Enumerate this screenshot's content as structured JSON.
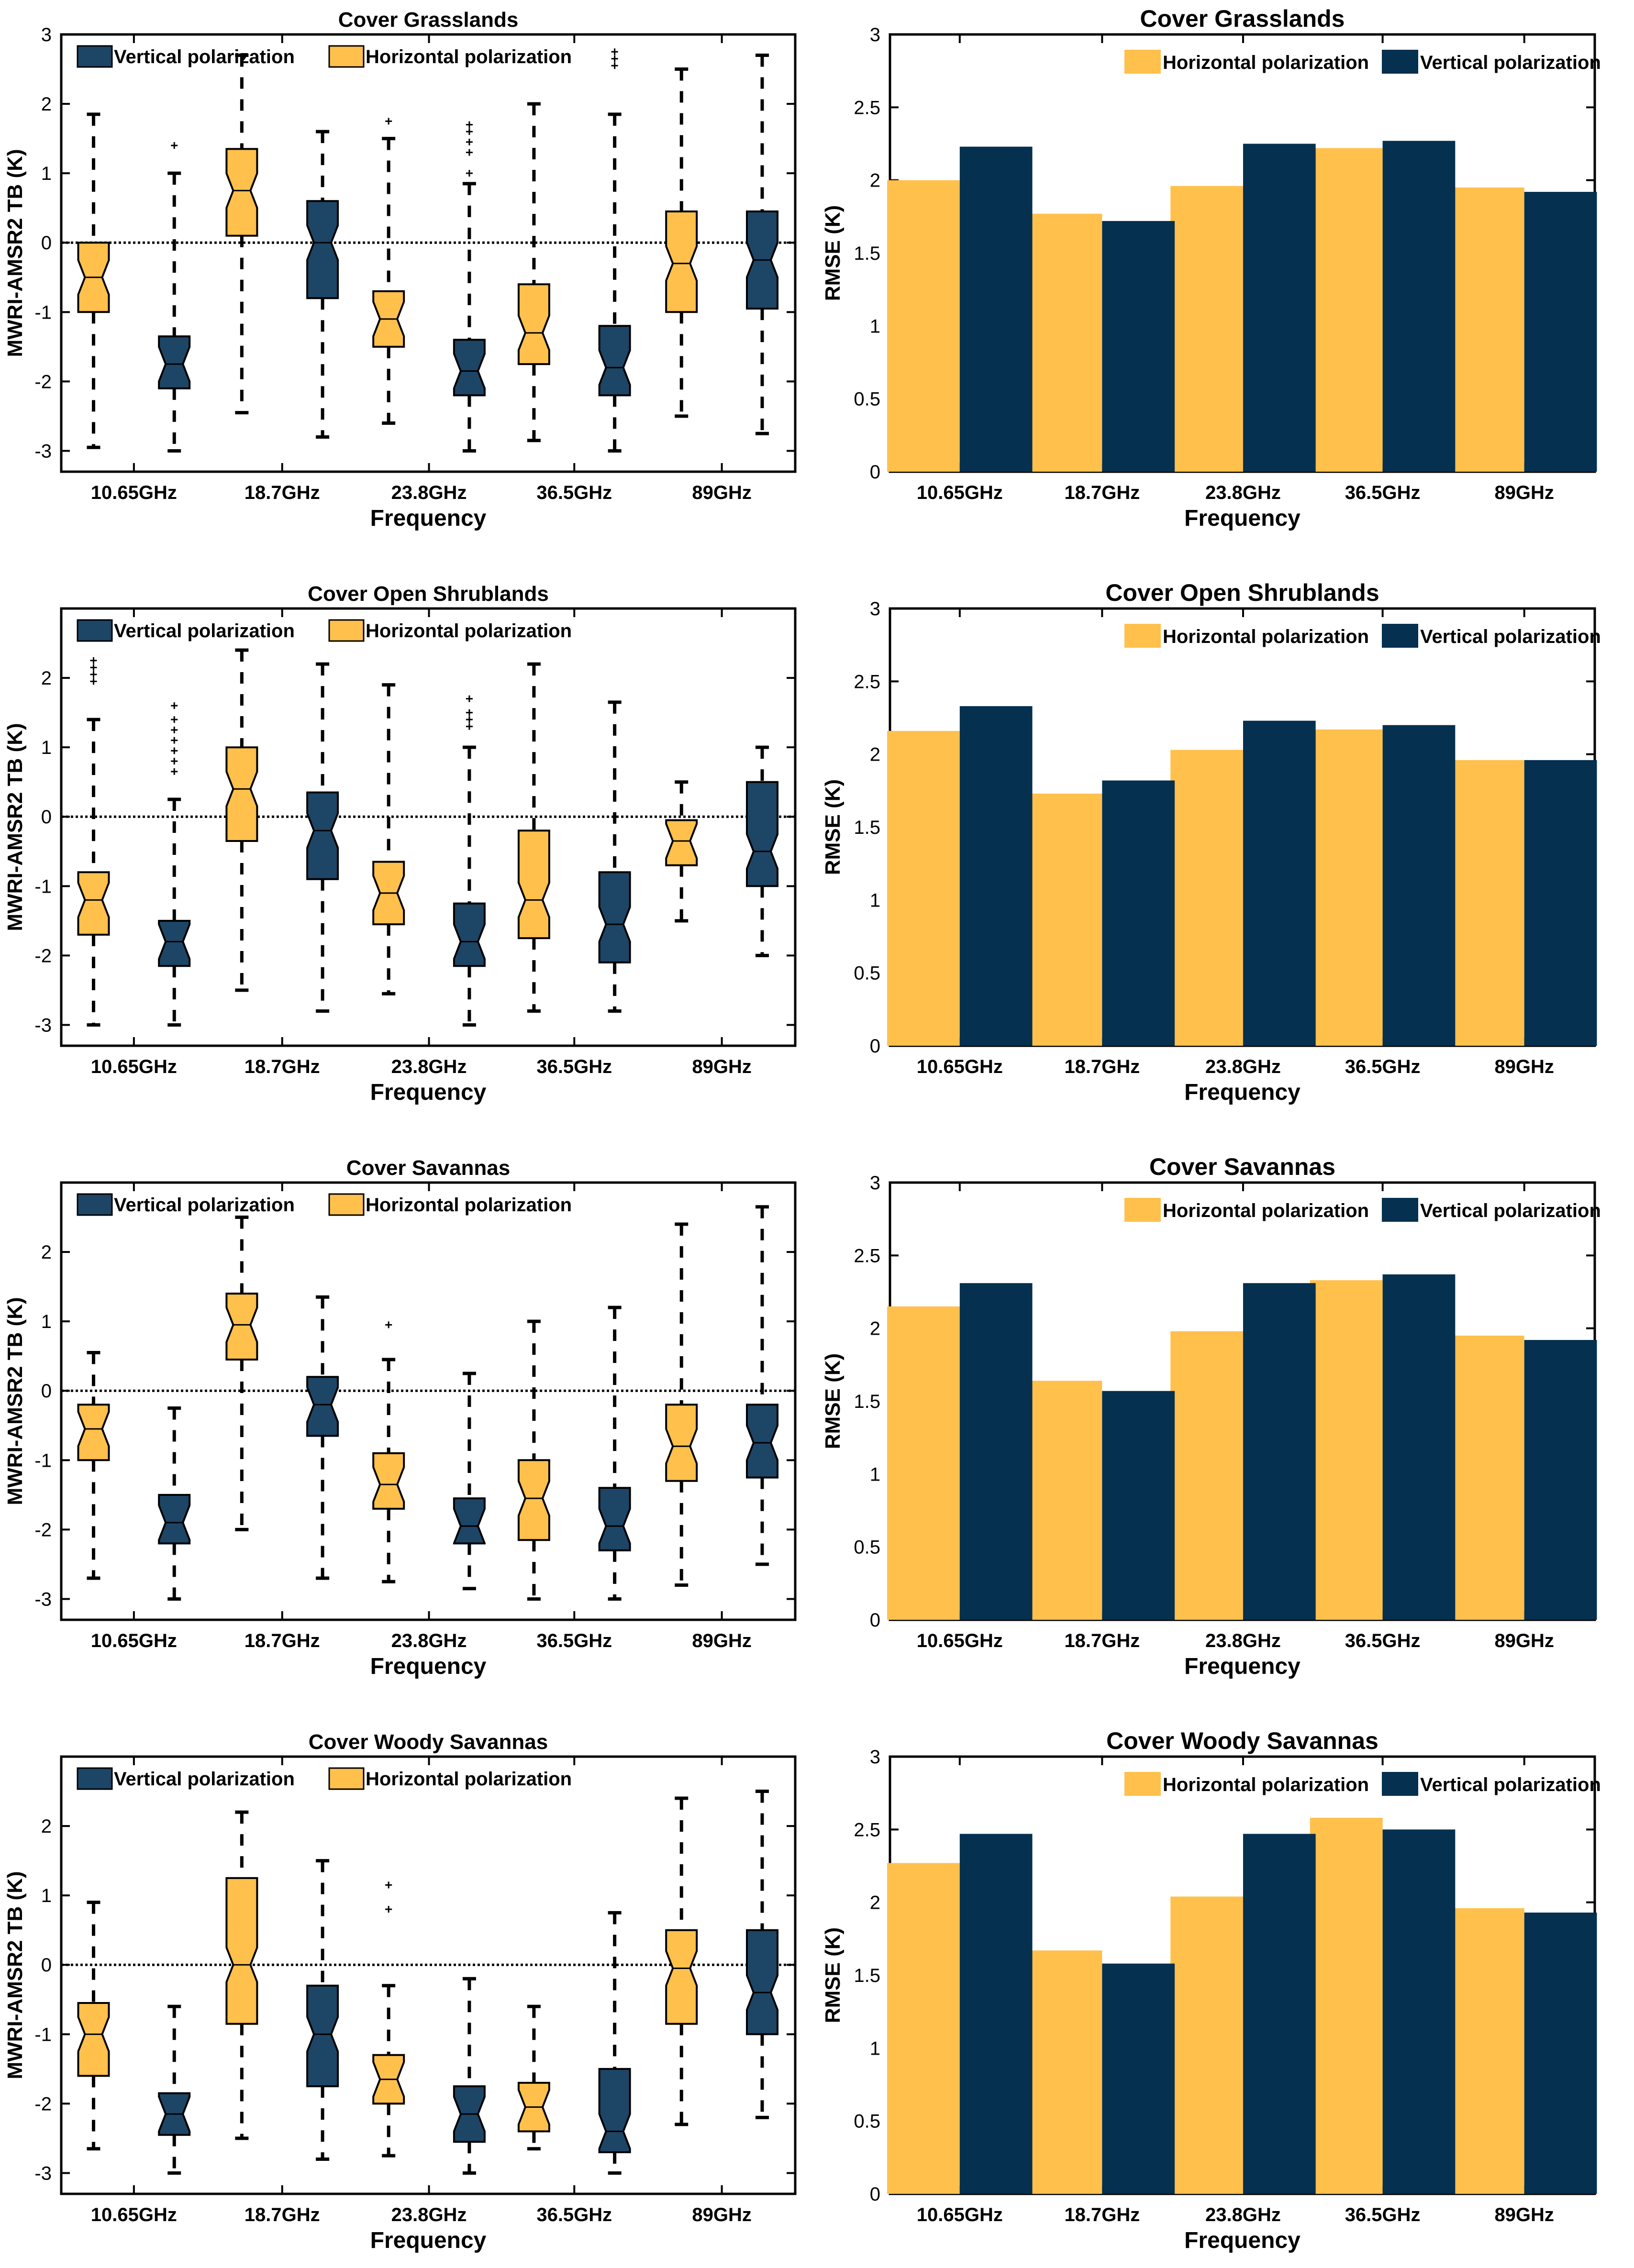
{
  "colors": {
    "horizontal": "#FFC04C",
    "vertical": "#05304F",
    "box_vertical": "#1D4566"
  },
  "legend_labels": {
    "vertical": "Vertical polarization",
    "horizontal": "Horizontal polarization"
  },
  "chart_data": [
    {
      "type": "box",
      "panel": "left",
      "row": 0,
      "title": "Cover  Grasslands",
      "xlabel": "Frequency",
      "ylabel": "MWRI-AMSR2 TB (K)",
      "ylim": [
        -3.3,
        3
      ],
      "yticks": [
        -3,
        -2,
        -1,
        0,
        1,
        2,
        3
      ],
      "categories": [
        "10.65GHz",
        "18.7GHz",
        "23.8GHz",
        "36.5GHz",
        "89GHz"
      ],
      "reference_line": 0,
      "series": [
        {
          "name": "Horizontal polarization",
          "key": "horizontal",
          "boxes": [
            {
              "whislo": -2.95,
              "q1": -1.0,
              "med": -0.5,
              "q3": 0.0,
              "whishi": 1.85,
              "fliers": []
            },
            {
              "whislo": -2.45,
              "q1": 0.1,
              "med": 0.75,
              "q3": 1.35,
              "whishi": 2.7,
              "fliers": []
            },
            {
              "whislo": -2.6,
              "q1": -1.5,
              "med": -1.1,
              "q3": -0.7,
              "whishi": 1.5,
              "fliers": [
                1.75
              ]
            },
            {
              "whislo": -2.85,
              "q1": -1.75,
              "med": -1.3,
              "q3": -0.6,
              "whishi": 2.0,
              "fliers": []
            },
            {
              "whislo": -2.5,
              "q1": -1.0,
              "med": -0.3,
              "q3": 0.45,
              "whishi": 2.5,
              "fliers": []
            }
          ]
        },
        {
          "name": "Vertical polarization",
          "key": "vertical",
          "boxes": [
            {
              "whislo": -3.0,
              "q1": -2.1,
              "med": -1.75,
              "q3": -1.35,
              "whishi": 1.0,
              "fliers": [
                1.4
              ]
            },
            {
              "whislo": -2.8,
              "q1": -0.8,
              "med": 0.0,
              "q3": 0.6,
              "whishi": 1.6,
              "fliers": []
            },
            {
              "whislo": -3.0,
              "q1": -2.2,
              "med": -1.85,
              "q3": -1.4,
              "whishi": 0.85,
              "fliers": [
                1.0,
                1.3,
                1.45,
                1.6,
                1.7
              ]
            },
            {
              "whislo": -3.0,
              "q1": -2.2,
              "med": -1.8,
              "q3": -1.2,
              "whishi": 1.85,
              "fliers": [
                2.55,
                2.65,
                2.75
              ]
            },
            {
              "whislo": -2.75,
              "q1": -0.95,
              "med": -0.25,
              "q3": 0.45,
              "whishi": 2.7,
              "fliers": []
            }
          ]
        }
      ]
    },
    {
      "type": "bar",
      "panel": "right",
      "row": 0,
      "title": "Cover  Grasslands",
      "xlabel": "Frequency",
      "ylabel": "RMSE (K)",
      "ylim": [
        0,
        3
      ],
      "yticks": [
        0,
        0.5,
        1,
        1.5,
        2,
        2.5,
        3
      ],
      "categories": [
        "10.65GHz",
        "18.7GHz",
        "23.8GHz",
        "36.5GHz",
        "89GHz"
      ],
      "series": [
        {
          "name": "Horizontal polarization",
          "key": "horizontal",
          "values": [
            2.0,
            1.77,
            1.96,
            2.22,
            1.95
          ]
        },
        {
          "name": "Vertical polarization",
          "key": "vertical",
          "values": [
            2.23,
            1.72,
            2.25,
            2.27,
            1.92
          ]
        }
      ]
    },
    {
      "type": "box",
      "panel": "left",
      "row": 1,
      "title": "Cover  Open Shrublands",
      "xlabel": "Frequency",
      "ylabel": "MWRI-AMSR2 TB (K)",
      "ylim": [
        -3.3,
        3
      ],
      "yticks": [
        -3,
        -2,
        -1,
        0,
        1,
        2
      ],
      "categories": [
        "10.65GHz",
        "18.7GHz",
        "23.8GHz",
        "36.5GHz",
        "89GHz"
      ],
      "reference_line": 0,
      "series": [
        {
          "name": "Horizontal polarization",
          "key": "horizontal",
          "boxes": [
            {
              "whislo": -3.0,
              "q1": -1.7,
              "med": -1.2,
              "q3": -0.8,
              "whishi": 1.4,
              "fliers": [
                1.95,
                2.05,
                2.15,
                2.25
              ]
            },
            {
              "whislo": -2.5,
              "q1": -0.35,
              "med": 0.4,
              "q3": 1.0,
              "whishi": 2.4,
              "fliers": []
            },
            {
              "whislo": -2.55,
              "q1": -1.55,
              "med": -1.1,
              "q3": -0.65,
              "whishi": 1.9,
              "fliers": []
            },
            {
              "whislo": -2.8,
              "q1": -1.75,
              "med": -1.2,
              "q3": -0.2,
              "whishi": 2.2,
              "fliers": []
            },
            {
              "whislo": -1.5,
              "q1": -0.7,
              "med": -0.35,
              "q3": -0.05,
              "whishi": 0.5,
              "fliers": []
            }
          ]
        },
        {
          "name": "Vertical polarization",
          "key": "vertical",
          "boxes": [
            {
              "whislo": -3.0,
              "q1": -2.15,
              "med": -1.8,
              "q3": -1.5,
              "whishi": 0.25,
              "fliers": [
                0.65,
                0.8,
                0.95,
                1.1,
                1.25,
                1.4,
                1.6
              ]
            },
            {
              "whislo": -2.8,
              "q1": -0.9,
              "med": -0.2,
              "q3": 0.35,
              "whishi": 2.2,
              "fliers": []
            },
            {
              "whislo": -3.0,
              "q1": -2.15,
              "med": -1.8,
              "q3": -1.25,
              "whishi": 1.0,
              "fliers": [
                1.3,
                1.4,
                1.5,
                1.7
              ]
            },
            {
              "whislo": -2.8,
              "q1": -2.1,
              "med": -1.55,
              "q3": -0.8,
              "whishi": 1.65,
              "fliers": []
            },
            {
              "whislo": -2.0,
              "q1": -1.0,
              "med": -0.5,
              "q3": 0.5,
              "whishi": 1.0,
              "fliers": []
            }
          ]
        }
      ]
    },
    {
      "type": "bar",
      "panel": "right",
      "row": 1,
      "title": "Cover  Open Shrublands",
      "xlabel": "Frequency",
      "ylabel": "RMSE (K)",
      "ylim": [
        0,
        3
      ],
      "yticks": [
        0,
        0.5,
        1,
        1.5,
        2,
        2.5,
        3
      ],
      "categories": [
        "10.65GHz",
        "18.7GHz",
        "23.8GHz",
        "36.5GHz",
        "89GHz"
      ],
      "series": [
        {
          "name": "Horizontal polarization",
          "key": "horizontal",
          "values": [
            2.16,
            1.73,
            2.03,
            2.17,
            1.96
          ]
        },
        {
          "name": "Vertical polarization",
          "key": "vertical",
          "values": [
            2.33,
            1.82,
            2.23,
            2.2,
            1.96
          ]
        }
      ]
    },
    {
      "type": "box",
      "panel": "left",
      "row": 2,
      "title": "Cover  Savannas",
      "xlabel": "Frequency",
      "ylabel": "MWRI-AMSR2 TB (K)",
      "ylim": [
        -3.3,
        3
      ],
      "yticks": [
        -3,
        -2,
        -1,
        0,
        1,
        2
      ],
      "categories": [
        "10.65GHz",
        "18.7GHz",
        "23.8GHz",
        "36.5GHz",
        "89GHz"
      ],
      "reference_line": 0,
      "series": [
        {
          "name": "Horizontal polarization",
          "key": "horizontal",
          "boxes": [
            {
              "whislo": -2.7,
              "q1": -1.0,
              "med": -0.55,
              "q3": -0.2,
              "whishi": 0.55,
              "fliers": []
            },
            {
              "whislo": -2.0,
              "q1": 0.45,
              "med": 0.95,
              "q3": 1.4,
              "whishi": 2.5,
              "fliers": []
            },
            {
              "whislo": -2.75,
              "q1": -1.7,
              "med": -1.35,
              "q3": -0.9,
              "whishi": 0.45,
              "fliers": [
                0.95
              ]
            },
            {
              "whislo": -3.0,
              "q1": -2.15,
              "med": -1.55,
              "q3": -1.0,
              "whishi": 1.0,
              "fliers": []
            },
            {
              "whislo": -2.8,
              "q1": -1.3,
              "med": -0.8,
              "q3": -0.2,
              "whishi": 2.4,
              "fliers": []
            }
          ]
        },
        {
          "name": "Vertical polarization",
          "key": "vertical",
          "boxes": [
            {
              "whislo": -3.0,
              "q1": -2.2,
              "med": -1.9,
              "q3": -1.5,
              "whishi": -0.25,
              "fliers": []
            },
            {
              "whislo": -2.7,
              "q1": -0.65,
              "med": -0.2,
              "q3": 0.2,
              "whishi": 1.35,
              "fliers": []
            },
            {
              "whislo": -2.85,
              "q1": -2.2,
              "med": -1.95,
              "q3": -1.55,
              "whishi": 0.25,
              "fliers": []
            },
            {
              "whislo": -3.0,
              "q1": -2.3,
              "med": -1.95,
              "q3": -1.4,
              "whishi": 1.2,
              "fliers": []
            },
            {
              "whislo": -2.5,
              "q1": -1.25,
              "med": -0.75,
              "q3": -0.2,
              "whishi": 2.65,
              "fliers": []
            }
          ]
        }
      ]
    },
    {
      "type": "bar",
      "panel": "right",
      "row": 2,
      "title": "Cover  Savannas",
      "xlabel": "Frequency",
      "ylabel": "RMSE (K)",
      "ylim": [
        0,
        3
      ],
      "yticks": [
        0,
        0.5,
        1,
        1.5,
        2,
        2.5,
        3
      ],
      "categories": [
        "10.65GHz",
        "18.7GHz",
        "23.8GHz",
        "36.5GHz",
        "89GHz"
      ],
      "series": [
        {
          "name": "Horizontal polarization",
          "key": "horizontal",
          "values": [
            2.15,
            1.64,
            1.98,
            2.33,
            1.95
          ]
        },
        {
          "name": "Vertical polarization",
          "key": "vertical",
          "values": [
            2.31,
            1.57,
            2.31,
            2.37,
            1.92
          ]
        }
      ]
    },
    {
      "type": "box",
      "panel": "left",
      "row": 3,
      "title": "Cover  Woody Savannas",
      "xlabel": "Frequency",
      "ylabel": "MWRI-AMSR2 TB (K)",
      "ylim": [
        -3.3,
        3
      ],
      "yticks": [
        -3,
        -2,
        -1,
        0,
        1,
        2
      ],
      "categories": [
        "10.65GHz",
        "18.7GHz",
        "23.8GHz",
        "36.5GHz",
        "89GHz"
      ],
      "reference_line": 0,
      "series": [
        {
          "name": "Horizontal polarization",
          "key": "horizontal",
          "boxes": [
            {
              "whislo": -2.65,
              "q1": -1.6,
              "med": -1.0,
              "q3": -0.55,
              "whishi": 0.9,
              "fliers": []
            },
            {
              "whislo": -2.5,
              "q1": -0.85,
              "med": 0.0,
              "q3": 1.25,
              "whishi": 2.2,
              "fliers": []
            },
            {
              "whislo": -2.75,
              "q1": -2.0,
              "med": -1.65,
              "q3": -1.3,
              "whishi": -0.3,
              "fliers": [
                0.8,
                1.15
              ]
            },
            {
              "whislo": -2.65,
              "q1": -2.4,
              "med": -2.05,
              "q3": -1.7,
              "whishi": -0.6,
              "fliers": []
            },
            {
              "whislo": -2.3,
              "q1": -0.85,
              "med": -0.05,
              "q3": 0.5,
              "whishi": 2.4,
              "fliers": []
            }
          ]
        },
        {
          "name": "Vertical polarization",
          "key": "vertical",
          "boxes": [
            {
              "whislo": -3.0,
              "q1": -2.45,
              "med": -2.15,
              "q3": -1.85,
              "whishi": -0.6,
              "fliers": []
            },
            {
              "whislo": -2.8,
              "q1": -1.75,
              "med": -1.0,
              "q3": -0.3,
              "whishi": 1.5,
              "fliers": []
            },
            {
              "whislo": -3.0,
              "q1": -2.55,
              "med": -2.15,
              "q3": -1.75,
              "whishi": -0.2,
              "fliers": []
            },
            {
              "whislo": -3.0,
              "q1": -2.7,
              "med": -2.4,
              "q3": -1.5,
              "whishi": 0.75,
              "fliers": []
            },
            {
              "whislo": -2.2,
              "q1": -1.0,
              "med": -0.4,
              "q3": 0.5,
              "whishi": 2.5,
              "fliers": []
            }
          ]
        }
      ]
    },
    {
      "type": "bar",
      "panel": "right",
      "row": 3,
      "title": "Cover  Woody Savannas",
      "xlabel": "Frequency",
      "ylabel": "RMSE (K)",
      "ylim": [
        0,
        3
      ],
      "yticks": [
        0,
        0.5,
        1,
        1.5,
        2,
        2.5,
        3
      ],
      "categories": [
        "10.65GHz",
        "18.7GHz",
        "23.8GHz",
        "36.5GHz",
        "89GHz"
      ],
      "series": [
        {
          "name": "Horizontal polarization",
          "key": "horizontal",
          "values": [
            2.27,
            1.67,
            2.04,
            2.58,
            1.96
          ]
        },
        {
          "name": "Vertical polarization",
          "key": "vertical",
          "values": [
            2.47,
            1.58,
            2.47,
            2.5,
            1.93
          ]
        }
      ]
    }
  ]
}
